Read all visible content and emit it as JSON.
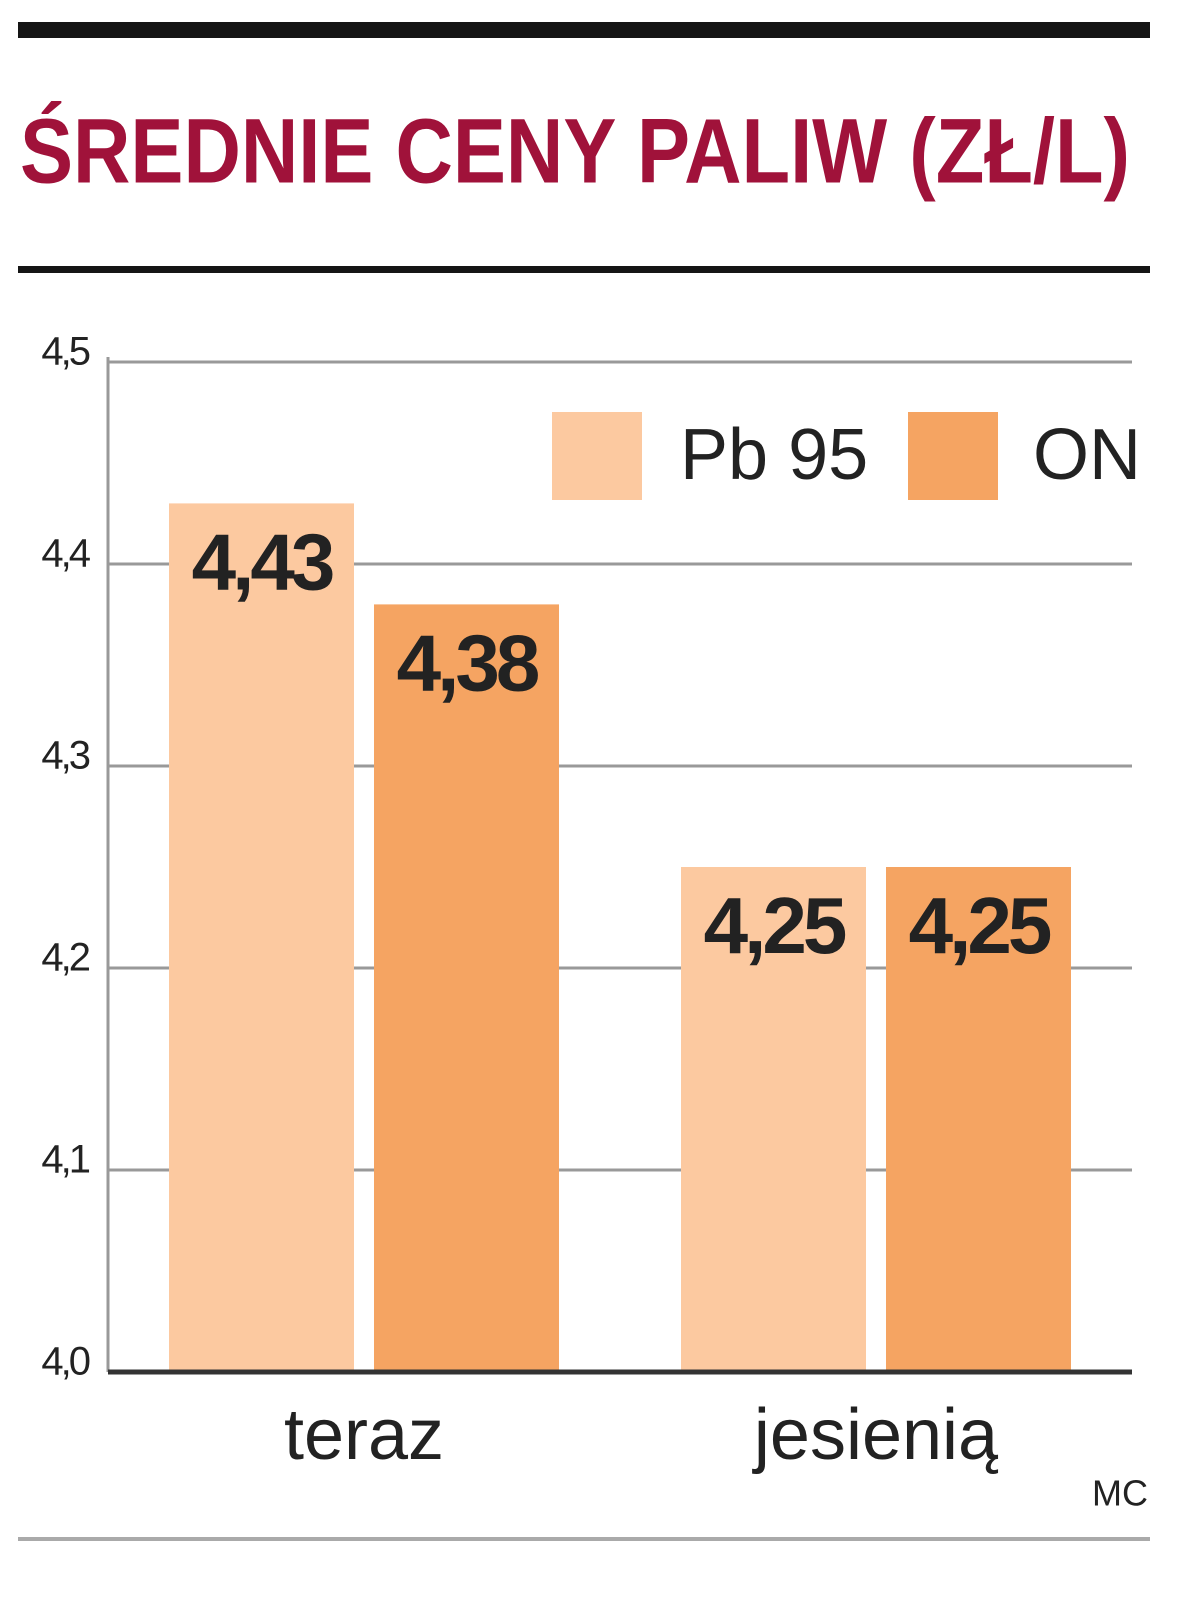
{
  "chart_data": {
    "type": "bar",
    "title": "ŚREDNIE CENY PALIW (ZŁ/L)",
    "categories": [
      "teraz",
      "jesienią"
    ],
    "series": [
      {
        "name": "Pb 95",
        "color": "#fcc9a0",
        "values": [
          4.43,
          4.25
        ],
        "value_labels": [
          "4,43",
          "4,25"
        ]
      },
      {
        "name": "ON",
        "color": "#f5a462",
        "values": [
          4.38,
          4.25
        ],
        "value_labels": [
          "4,38",
          "4,25"
        ]
      }
    ],
    "ylim": [
      4.0,
      4.5
    ],
    "yticks": [
      {
        "value": 4.0,
        "label": "4,0"
      },
      {
        "value": 4.1,
        "label": "4,1"
      },
      {
        "value": 4.2,
        "label": "4,2"
      },
      {
        "value": 4.3,
        "label": "4,3"
      },
      {
        "value": 4.4,
        "label": "4,4"
      },
      {
        "value": 4.5,
        "label": "4,5"
      }
    ],
    "grid": true,
    "legend": "top-right",
    "credit": "MC"
  }
}
